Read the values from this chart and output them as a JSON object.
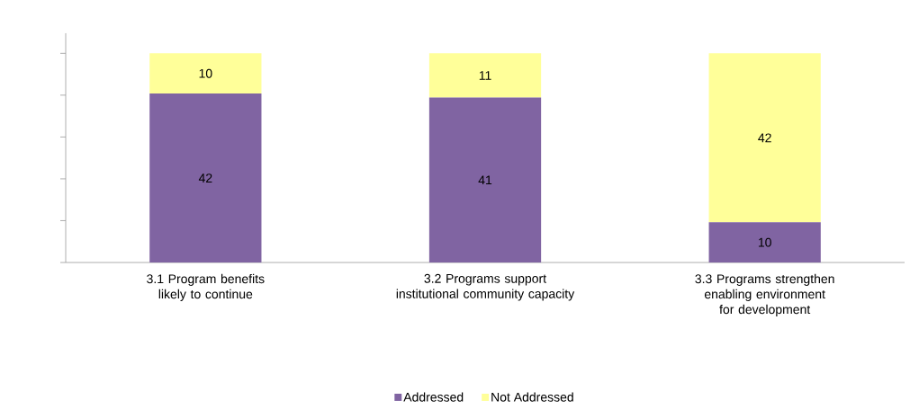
{
  "chart_data": {
    "type": "bar",
    "stacked": true,
    "categories": [
      "3.1 Program benefits likely to continue",
      "3.2 Programs support institutional community capacity",
      "3.3 Programs strengthen enabling environment for development"
    ],
    "series": [
      {
        "name": "Addressed",
        "color": "#8064a2",
        "values": [
          42,
          41,
          10
        ]
      },
      {
        "name": "Not Addressed",
        "color": "#ffff99",
        "values": [
          10,
          11,
          42
        ]
      }
    ],
    "tick_labels": "x",
    "data_labels": true,
    "legend": "bottom",
    "grid": false
  }
}
